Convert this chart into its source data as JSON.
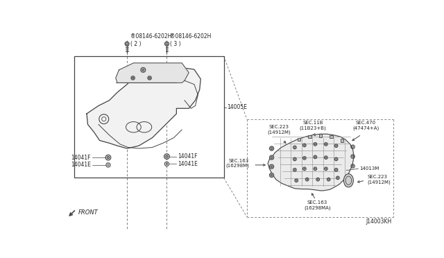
{
  "bg_color": "#ffffff",
  "fig_width": 6.4,
  "fig_height": 3.72,
  "dpi": 100,
  "labels": {
    "bolt1_label": "®08146-6202H\n( 2 )",
    "bolt2_label": "®08146-6202H\n( 3 )",
    "part_14005E": "14005E",
    "part_14041F_left": "14041F",
    "part_14041E_left": "14041E",
    "part_14041F_right": "14041F",
    "part_14041E_right": "14041E",
    "sec223_top": "SEC.223\n(14912M)",
    "sec118": "SEC.11B\n(11B23+B)",
    "sec470": "SEC.470\n(47474+A)",
    "sec163_left": "SEC.163\n(16298M)",
    "part_14013M": "14013M",
    "sec223_bottom": "SEC.223\n(14912M)",
    "sec163_bottom": "SEC.163\n(16298MA)",
    "front_label": "FRONT",
    "diagram_id": "J14003KH"
  },
  "colors": {
    "line": "#444444",
    "text": "#222222",
    "dashed": "#666666",
    "fill_cover": "#f5f5f5",
    "fill_manifold": "#e8e8e8"
  }
}
